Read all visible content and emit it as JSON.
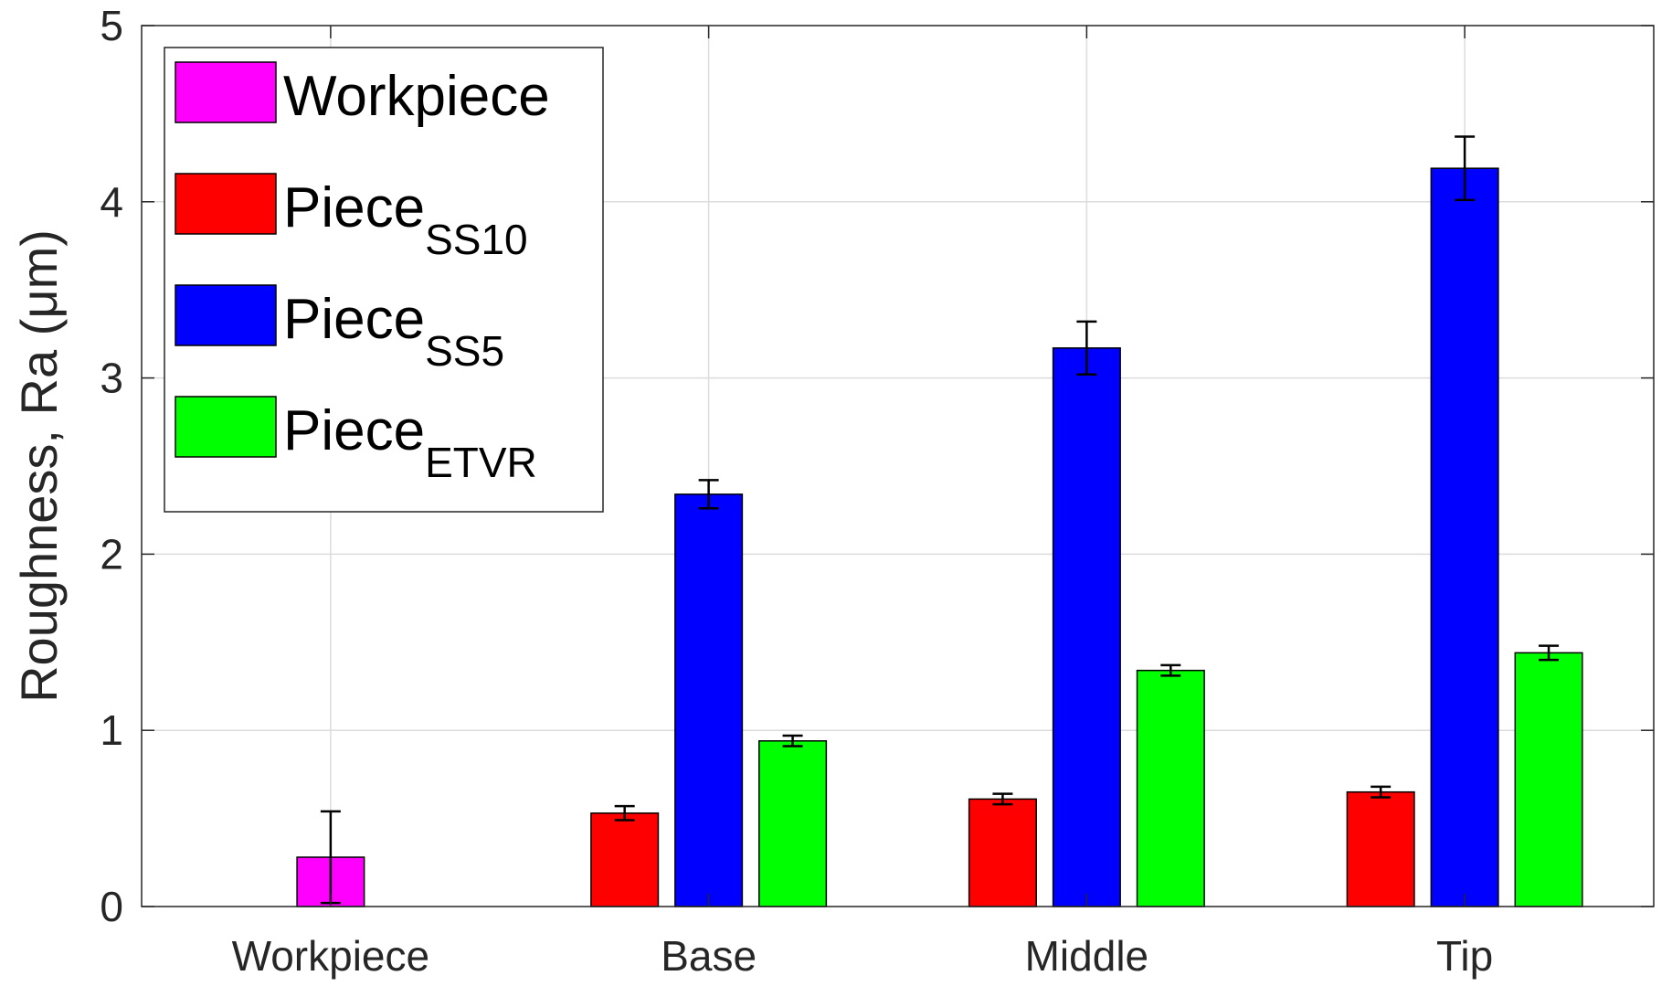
{
  "chart_data": {
    "type": "bar",
    "categories": [
      "Workpiece",
      "Base",
      "Middle",
      "Tip"
    ],
    "ylabel": "Roughness, Ra (μm)",
    "ylim": [
      0,
      5
    ],
    "yticks": [
      "0",
      "1",
      "2",
      "3",
      "4",
      "5"
    ],
    "grid": true,
    "legend_position": "top-left",
    "series": [
      {
        "name": "Workpiece",
        "name_main": "Workpiece",
        "name_sub": "",
        "color": "#ff00ff",
        "values": [
          0.28,
          null,
          null,
          null
        ],
        "errors": [
          0.26,
          null,
          null,
          null
        ]
      },
      {
        "name": "Piece SS10",
        "name_main": "Piece",
        "name_sub": "SS10",
        "color": "#ff0000",
        "values": [
          null,
          0.53,
          0.61,
          0.65
        ],
        "errors": [
          null,
          0.04,
          0.03,
          0.03
        ]
      },
      {
        "name": "Piece SS5",
        "name_main": "Piece",
        "name_sub": "SS5",
        "color": "#0000ff",
        "values": [
          null,
          2.34,
          3.17,
          4.19
        ],
        "errors": [
          null,
          0.08,
          0.15,
          0.18
        ]
      },
      {
        "name": "Piece ETVR",
        "name_main": "Piece",
        "name_sub": "ETVR",
        "color": "#00ff00",
        "values": [
          null,
          0.94,
          1.34,
          1.44
        ],
        "errors": [
          null,
          0.03,
          0.03,
          0.04
        ]
      }
    ]
  }
}
